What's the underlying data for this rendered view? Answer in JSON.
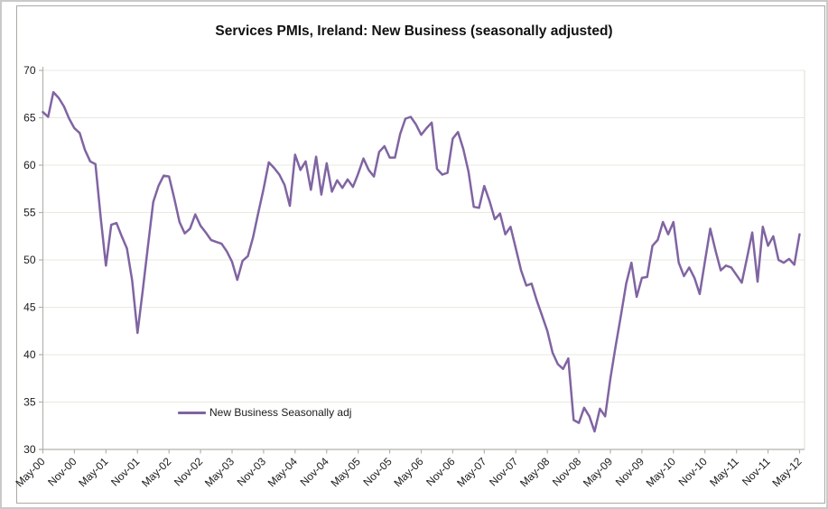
{
  "chart_data": {
    "type": "line",
    "title": "Services PMIs, Ireland: New Business (seasonally adjusted)",
    "legend_position": "inside-bottom-left",
    "grid": "horizontal",
    "ylim": [
      30,
      70
    ],
    "y_ticks": [
      30,
      35,
      40,
      45,
      50,
      55,
      60,
      65,
      70
    ],
    "x_tick_labels": [
      "May-00",
      "Nov-00",
      "May-01",
      "Nov-01",
      "May-02",
      "Nov-02",
      "May-03",
      "Nov-03",
      "May-04",
      "Nov-04",
      "May-05",
      "Nov-05",
      "May-06",
      "Nov-06",
      "May-07",
      "Nov-07",
      "May-08",
      "Nov-08",
      "May-09",
      "Nov-09",
      "May-10",
      "Nov-10",
      "May-11",
      "Nov-11",
      "May-12"
    ],
    "months_per_tick": 6,
    "series": [
      {
        "name": "New Business Seasonally adj",
        "color": "#8064A2",
        "start_month": "May-00",
        "end_month": "May-12",
        "values": [
          65.6,
          65.1,
          67.7,
          67.1,
          66.2,
          64.9,
          63.9,
          63.4,
          61.6,
          60.4,
          60.1,
          54.5,
          49.4,
          53.7,
          53.9,
          52.5,
          51.2,
          47.8,
          42.3,
          46.8,
          51.5,
          56.1,
          57.8,
          58.9,
          58.8,
          56.5,
          54.0,
          52.8,
          53.3,
          54.8,
          53.6,
          52.9,
          52.1,
          51.9,
          51.7,
          50.9,
          49.8,
          47.9,
          49.9,
          50.4,
          52.4,
          55.0,
          57.5,
          60.3,
          59.7,
          59.0,
          57.9,
          55.7,
          61.1,
          59.5,
          60.4,
          57.4,
          60.9,
          56.9,
          60.2,
          57.2,
          58.4,
          57.6,
          58.5,
          57.7,
          59.1,
          60.7,
          59.5,
          58.8,
          61.4,
          62.0,
          60.8,
          60.8,
          63.3,
          64.9,
          65.1,
          64.3,
          63.2,
          63.9,
          64.5,
          59.6,
          59.0,
          59.2,
          62.8,
          63.5,
          61.7,
          59.3,
          55.6,
          55.5,
          57.8,
          56.2,
          54.3,
          54.9,
          52.7,
          53.5,
          51.2,
          48.9,
          47.3,
          47.5,
          45.7,
          44.1,
          42.5,
          40.2,
          39.0,
          38.5,
          39.6,
          33.1,
          32.8,
          34.4,
          33.5,
          31.9,
          34.3,
          33.5,
          37.5,
          40.9,
          44.1,
          47.5,
          49.7,
          46.1,
          48.1,
          48.2,
          51.5,
          52.1,
          54.0,
          52.7,
          54.0,
          49.7,
          48.3,
          49.2,
          48.1,
          46.4,
          49.9,
          53.3,
          51.0,
          48.9,
          49.4,
          49.2,
          48.4,
          47.6,
          50.2,
          52.9,
          47.7,
          53.5,
          51.5,
          52.5,
          50.0,
          49.7,
          50.1,
          49.5,
          52.7
        ]
      }
    ],
    "colors": {
      "line": "#8064A2",
      "gridline": "#e9e9df",
      "axis": "#b3b3ac",
      "plot_right_border": "#dcdcd2",
      "text": "#1a1a1a",
      "chart_border": "#a9a9a3",
      "outer_border": "#c9c9c9"
    }
  }
}
